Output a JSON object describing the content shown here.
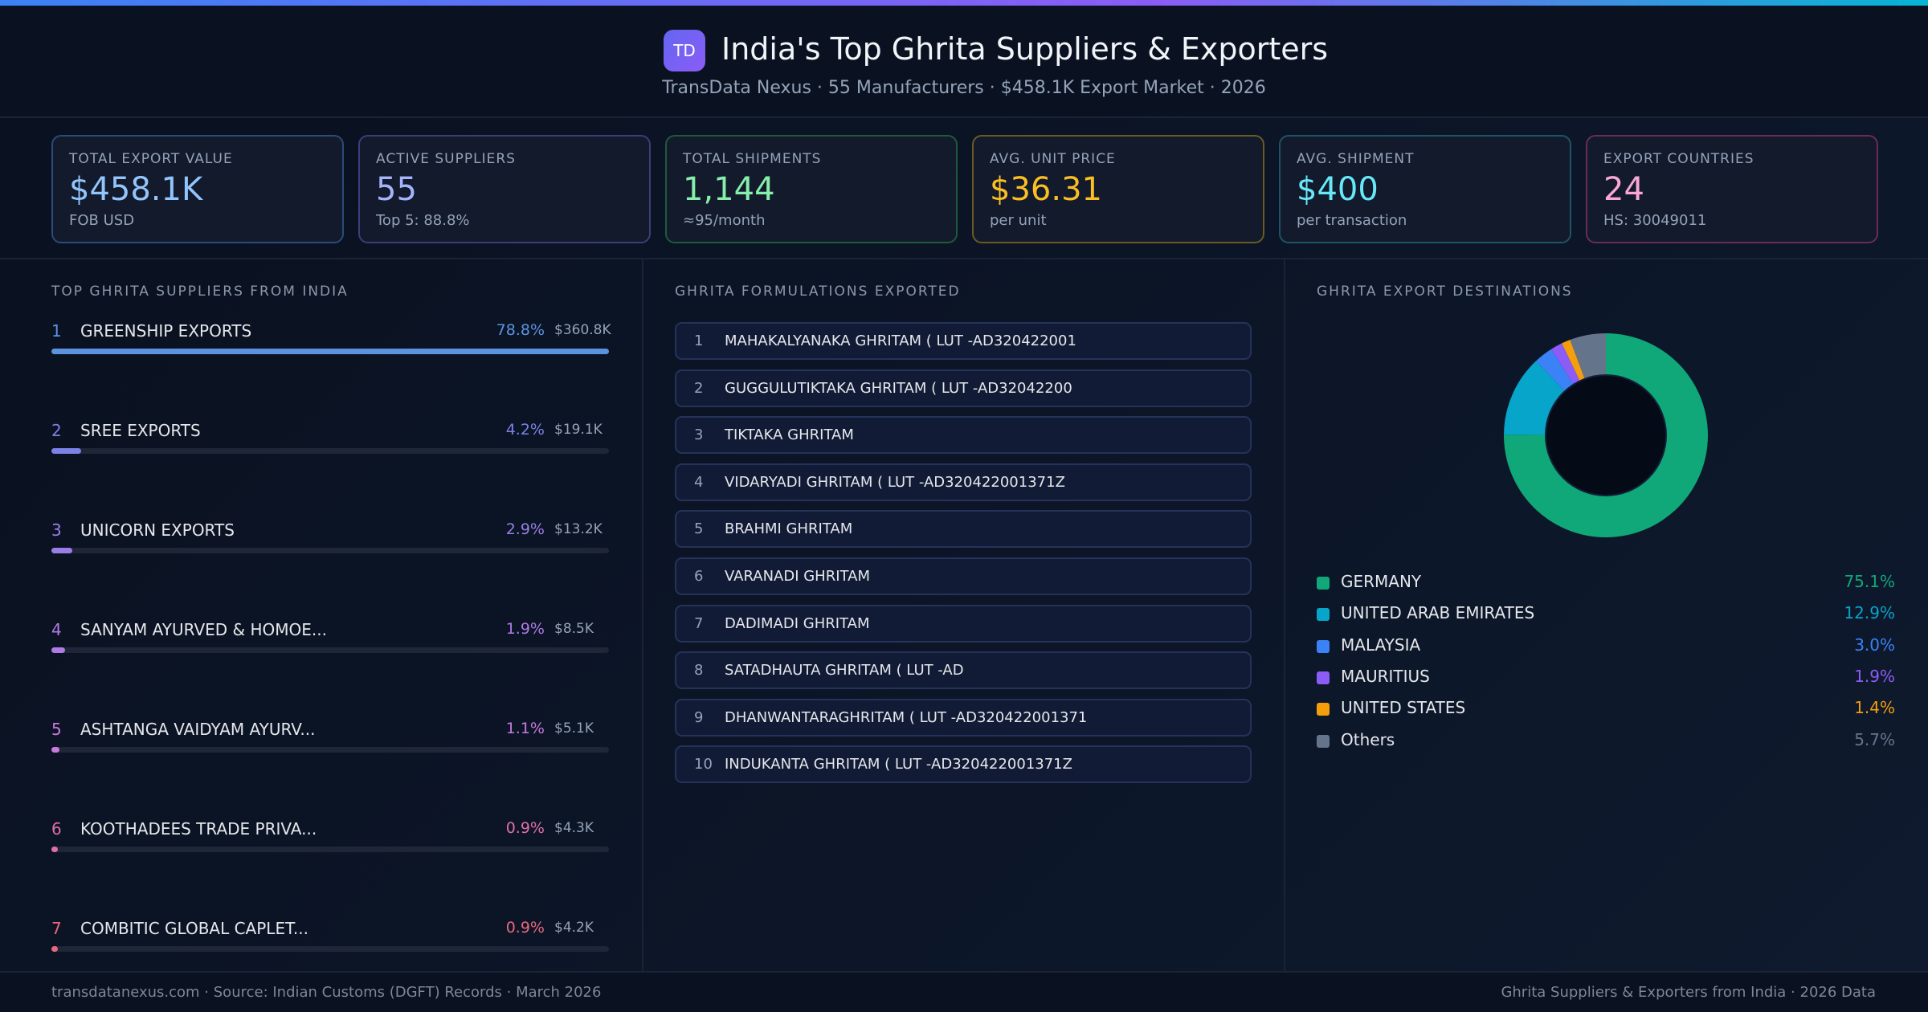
{
  "header": {
    "logo": "TD",
    "title": "India's Top Ghrita Suppliers & Exporters",
    "subtitle": "TransData Nexus · 55 Manufacturers · $458.1K Export Market · 2026"
  },
  "cards": [
    {
      "label": "Total Export Value",
      "value": "$458.1K",
      "sub": "FOB USD",
      "color": "#93c5fd",
      "border": "#2c4a7a"
    },
    {
      "label": "Active Suppliers",
      "value": "55",
      "sub": "Top 5: 88.8%",
      "color": "#a5b4fc",
      "border": "#3a3f7a"
    },
    {
      "label": "Total Shipments",
      "value": "1,144",
      "sub": "≈95/month",
      "color": "#86efac",
      "border": "#1f5a3c"
    },
    {
      "label": "Avg. Unit Price",
      "value": "$36.31",
      "sub": "per unit",
      "color": "#fbbf24",
      "border": "#6b5a22"
    },
    {
      "label": "Avg. Shipment",
      "value": "$400",
      "sub": "per transaction",
      "color": "#67e8f9",
      "border": "#1d5566"
    },
    {
      "label": "Export Countries",
      "value": "24",
      "sub": "HS: 30049011",
      "color": "#f9a8d4",
      "border": "#6a2c55"
    }
  ],
  "suppliers": {
    "title": "TOP GHRITA SUPPLIERS FROM INDIA",
    "items": [
      {
        "rank": "1",
        "name": "GREENSHIP EXPORTS",
        "pct": "78.8%",
        "share": 78.8,
        "value": "$360.8K",
        "color": "#5b93e0"
      },
      {
        "rank": "2",
        "name": "SREE EXPORTS",
        "pct": "4.2%",
        "share": 4.2,
        "value": "$19.1K",
        "color": "#7b82e6"
      },
      {
        "rank": "3",
        "name": "UNICORN EXPORTS",
        "pct": "2.9%",
        "share": 2.9,
        "value": "$13.2K",
        "color": "#9a7ee6"
      },
      {
        "rank": "4",
        "name": "SANYAM AYURVED & HOMOE...",
        "pct": "1.9%",
        "share": 1.9,
        "value": "$8.5K",
        "color": "#b07ae6"
      },
      {
        "rank": "5",
        "name": "ASHTANGA VAIDYAM AYURV...",
        "pct": "1.1%",
        "share": 1.1,
        "value": "$5.1K",
        "color": "#c979e0"
      },
      {
        "rank": "6",
        "name": "KOOTHADEES TRADE PRIVA...",
        "pct": "0.9%",
        "share": 0.9,
        "value": "$4.3K",
        "color": "#e06fa6"
      },
      {
        "rank": "7",
        "name": "COMBITIC GLOBAL CAPLET...",
        "pct": "0.9%",
        "share": 0.9,
        "value": "$4.2K",
        "color": "#e8687e"
      }
    ]
  },
  "formulations": {
    "title": "GHRITA FORMULATIONS EXPORTED",
    "items": [
      {
        "n": "1",
        "name": "MAHAKALYANAKA GHRITAM ( LUT -AD320422001"
      },
      {
        "n": "2",
        "name": "GUGGULUTIKTAKA GHRITAM ( LUT -AD32042200"
      },
      {
        "n": "3",
        "name": "TIKTAKA GHRITAM"
      },
      {
        "n": "4",
        "name": "VIDARYADI GHRITAM ( LUT -AD320422001371Z"
      },
      {
        "n": "5",
        "name": "BRAHMI GHRITAM"
      },
      {
        "n": "6",
        "name": "VARANADI GHRITAM"
      },
      {
        "n": "7",
        "name": "DADIMADI GHRITAM"
      },
      {
        "n": "8",
        "name": "SATADHAUTA  GHRITAM ( LUT -AD"
      },
      {
        "n": "9",
        "name": "DHANWANTARAGHRITAM  ( LUT -AD320422001371"
      },
      {
        "n": "10",
        "name": "INDUKANTA GHRITAM ( LUT -AD320422001371Z"
      }
    ]
  },
  "destinations": {
    "title": "GHRITA EXPORT DESTINATIONS"
  },
  "chart_data": {
    "type": "pie",
    "donut": true,
    "categories": [
      "GERMANY",
      "UNITED ARAB EMIRATES",
      "MALAYSIA",
      "MAURITIUS",
      "UNITED STATES",
      "Others"
    ],
    "labels": [
      "75.1%",
      "12.9%",
      "3.0%",
      "1.9%",
      "1.4%",
      "5.7%"
    ],
    "values": [
      75.1,
      12.9,
      3.0,
      1.9,
      1.4,
      5.7
    ],
    "colors": [
      "#10a878",
      "#06a5c9",
      "#3b82f6",
      "#8b5cf6",
      "#f59e0b",
      "#64748b"
    ],
    "legend": "bottom"
  },
  "footer": {
    "left": "transdatanexus.com · Source: Indian Customs (DGFT) Records · March 2026",
    "right": "Ghrita Suppliers & Exporters from India · 2026 Data"
  }
}
